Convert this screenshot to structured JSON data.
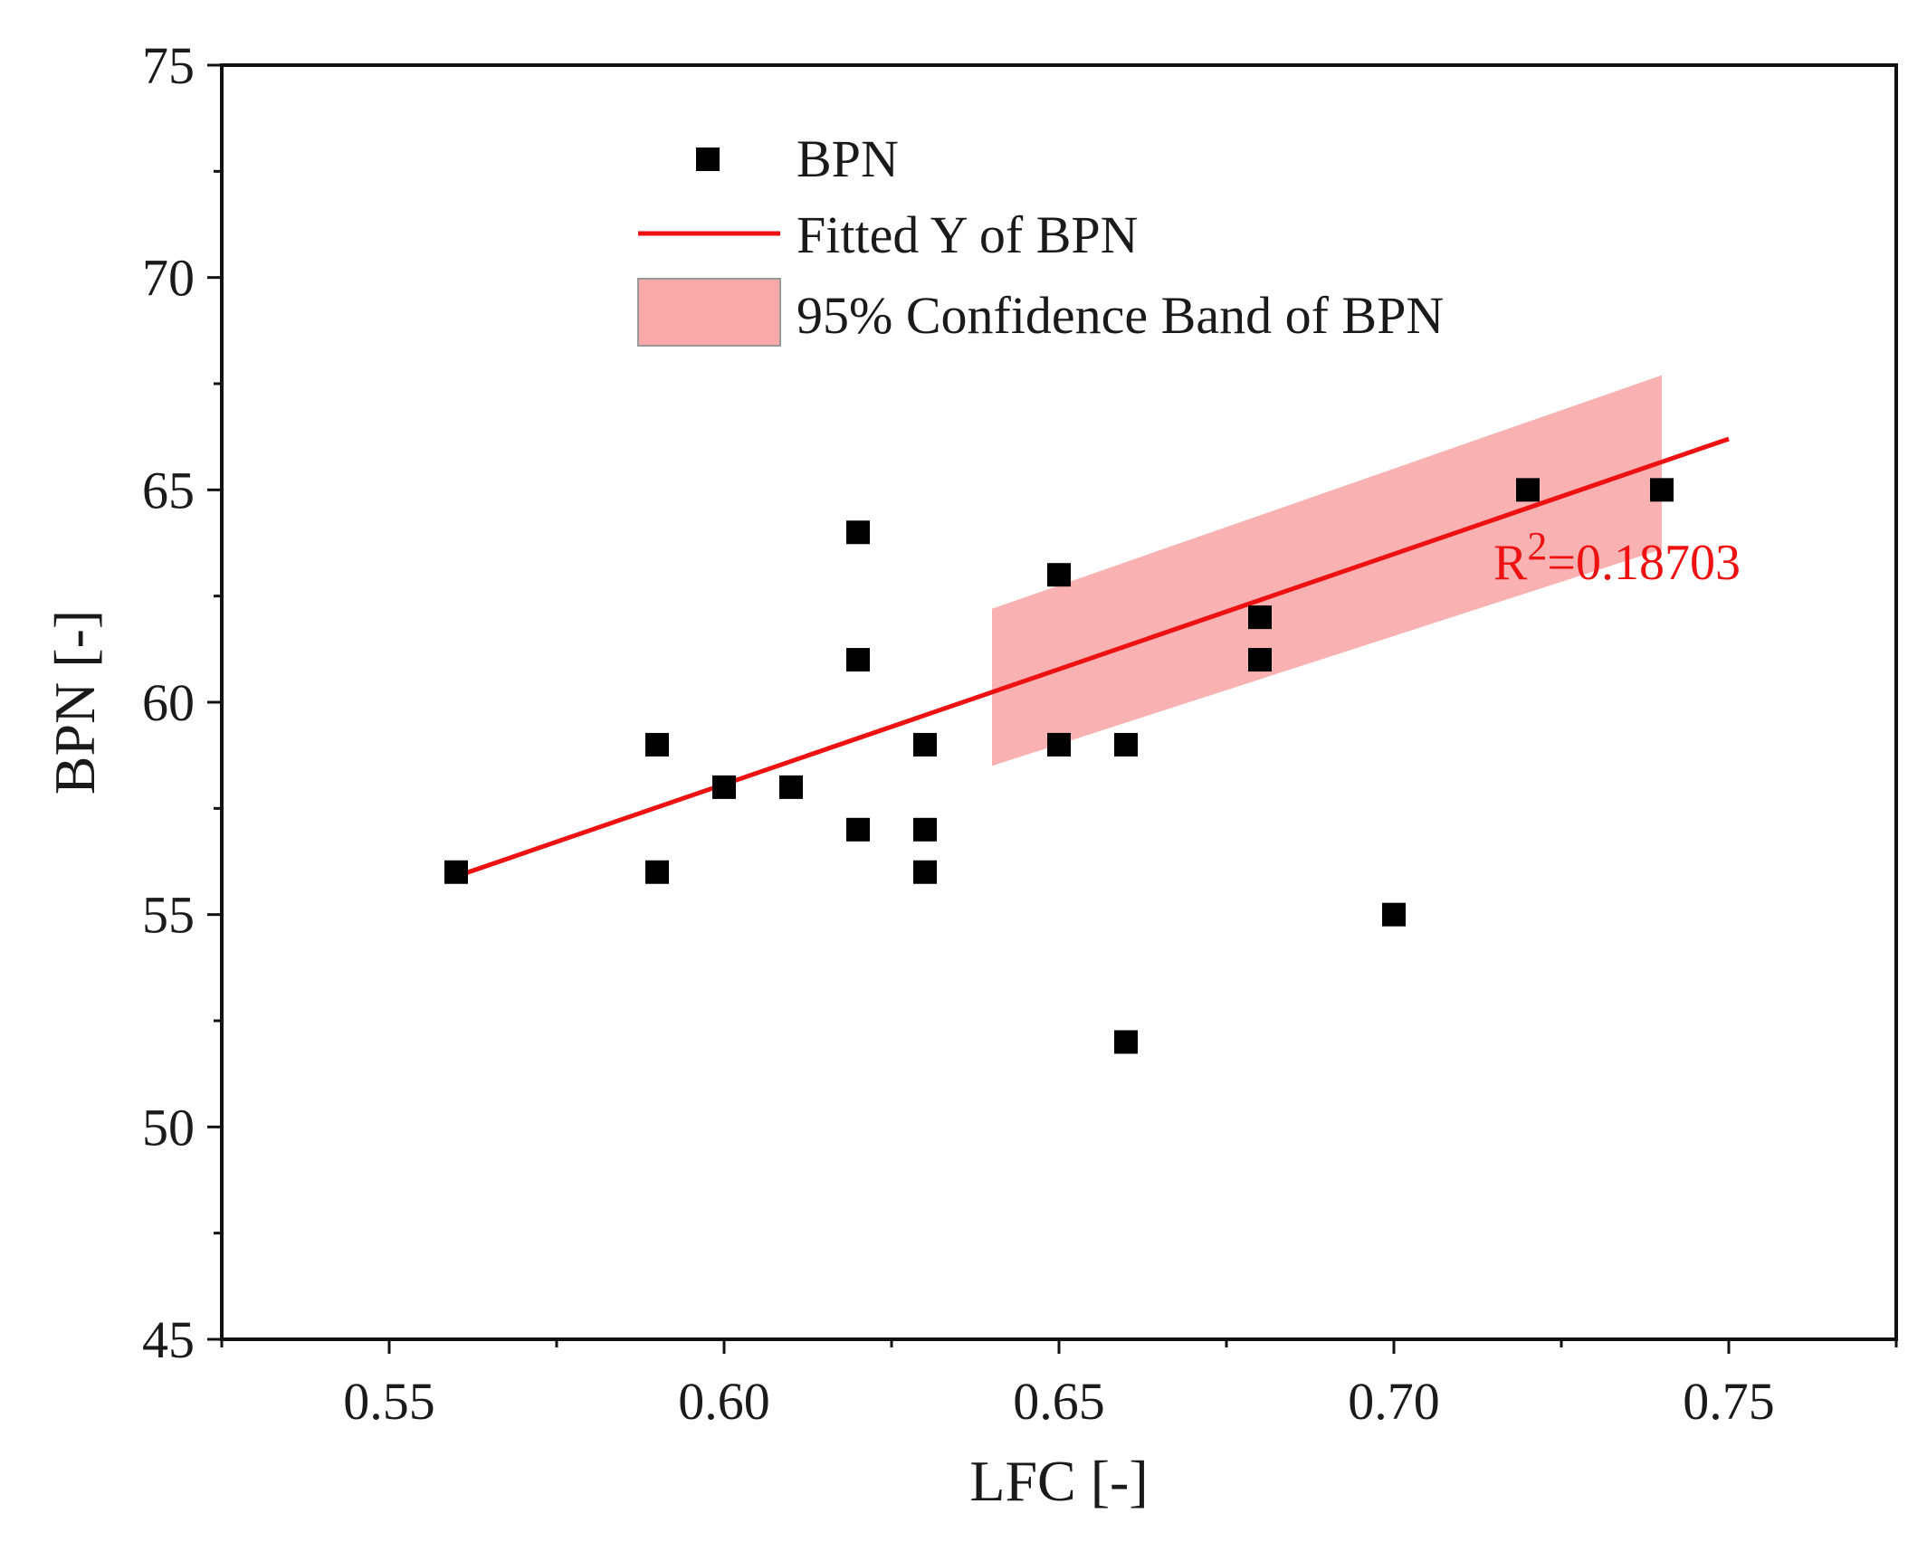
{
  "chart_data": {
    "type": "scatter",
    "title": "",
    "xlabel": "LFC [-]",
    "ylabel": "BPN [-]",
    "xlim": [
      0.525,
      0.775
    ],
    "ylim": [
      45,
      75
    ],
    "xticks": [
      0.55,
      0.6,
      0.65,
      0.7,
      0.75
    ],
    "xtick_labels": [
      "0.55",
      "0.60",
      "0.65",
      "0.70",
      "0.75"
    ],
    "yticks": [
      45,
      50,
      55,
      60,
      65,
      70,
      75
    ],
    "ytick_labels": [
      "45",
      "50",
      "55",
      "60",
      "65",
      "70",
      "75"
    ],
    "grid": false,
    "series": [
      {
        "name": "BPN",
        "kind": "scatter",
        "marker": "square",
        "color": "#000000",
        "points": [
          {
            "x": 0.56,
            "y": 56
          },
          {
            "x": 0.59,
            "y": 59
          },
          {
            "x": 0.59,
            "y": 56
          },
          {
            "x": 0.6,
            "y": 58
          },
          {
            "x": 0.61,
            "y": 58
          },
          {
            "x": 0.62,
            "y": 64
          },
          {
            "x": 0.62,
            "y": 61
          },
          {
            "x": 0.62,
            "y": 57
          },
          {
            "x": 0.63,
            "y": 59
          },
          {
            "x": 0.63,
            "y": 57
          },
          {
            "x": 0.63,
            "y": 56
          },
          {
            "x": 0.65,
            "y": 63
          },
          {
            "x": 0.65,
            "y": 59
          },
          {
            "x": 0.66,
            "y": 59
          },
          {
            "x": 0.66,
            "y": 52
          },
          {
            "x": 0.68,
            "y": 62
          },
          {
            "x": 0.68,
            "y": 61
          },
          {
            "x": 0.7,
            "y": 55
          },
          {
            "x": 0.72,
            "y": 65
          },
          {
            "x": 0.74,
            "y": 65
          }
        ]
      },
      {
        "name": "Fitted Y of BPN",
        "kind": "line",
        "color": "#ee1111",
        "points": [
          {
            "x": 0.56,
            "y": 55.9
          },
          {
            "x": 0.75,
            "y": 66.2
          }
        ]
      },
      {
        "name": "95% Confidence Band of BPN",
        "kind": "band",
        "color": "#f8a9a9",
        "x": [
          0.64,
          0.74
        ],
        "lower": [
          58.5,
          63.6
        ],
        "upper": [
          62.2,
          67.7
        ]
      }
    ],
    "legend": {
      "placement": "top-center",
      "entries": [
        "BPN",
        "Fitted Y of BPN",
        "95% Confidence Band of BPN"
      ]
    },
    "annotations": [
      {
        "text": "R",
        "superscript": "2",
        "value_text": "=0.18703",
        "color": "#ee1111"
      }
    ]
  }
}
